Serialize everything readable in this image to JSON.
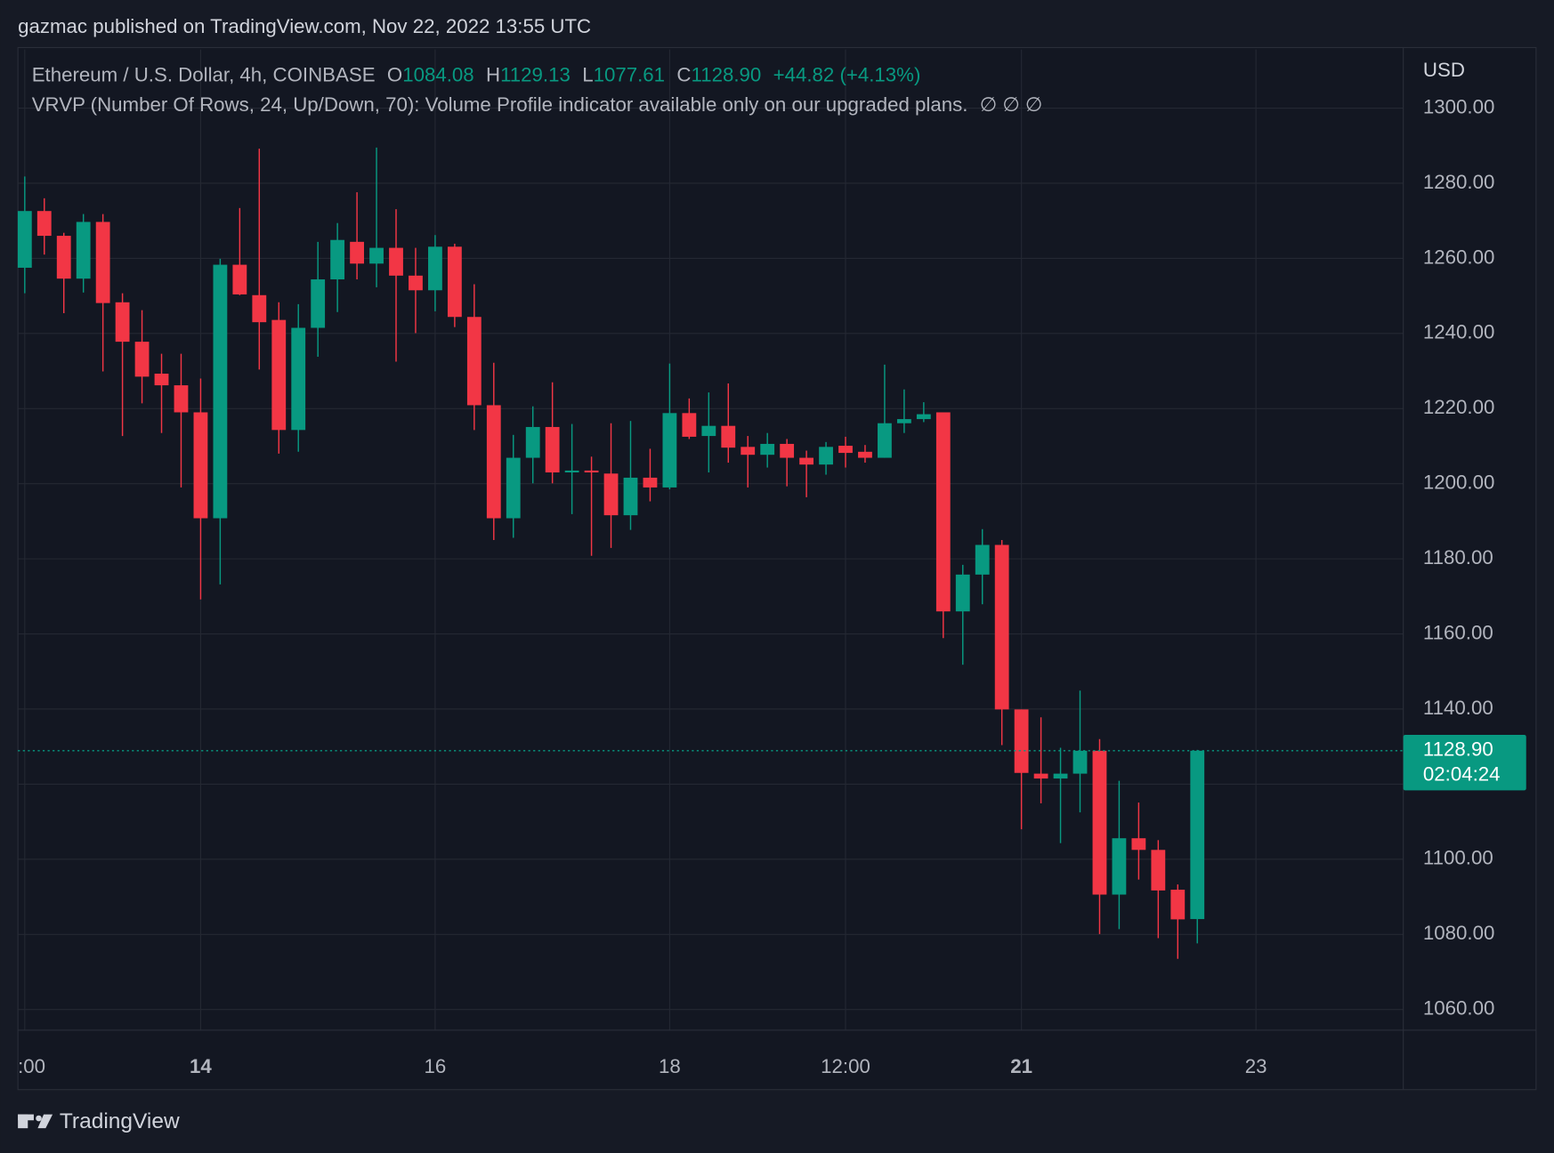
{
  "header": {
    "published": "gazmac published on TradingView.com, Nov 22, 2022 13:55 UTC",
    "symbol": "Ethereum / U.S. Dollar, 4h, COINBASE",
    "o_key": "O",
    "o_val": "1084.08",
    "h_key": "H",
    "h_val": "1129.13",
    "l_key": "L",
    "l_val": "1077.61",
    "c_key": "C",
    "c_val": "1128.90",
    "change": "+44.82 (+4.13%)",
    "indicator": "VRVP (Number Of Rows, 24, Up/Down, 70): Volume Profile indicator available only on our upgraded plans.",
    "indicator_values": "∅  ∅  ∅"
  },
  "chart_data": {
    "type": "candlestick",
    "currency": "USD",
    "up_color": "#089981",
    "down_color": "#f23645",
    "open": [
      1257.5,
      1272.6,
      1266.0,
      1254.6,
      1269.7,
      1248.3,
      1237.8,
      1229.3,
      1226.2,
      1219.0,
      1190.8,
      1258.3,
      1250.2,
      1243.6,
      1214.3,
      1241.5,
      1254.4,
      1264.4,
      1258.6,
      1262.8,
      1255.4,
      1251.5,
      1263.1,
      1244.4,
      1220.9,
      1190.8,
      1206.9,
      1215.1,
      1203.0,
      1203.5,
      1202.7,
      1191.6,
      1201.6,
      1199.0,
      1218.8,
      1212.7,
      1215.4,
      1209.8,
      1207.7,
      1210.6,
      1206.9,
      1205.1,
      1210.1,
      1208.5,
      1206.9,
      1216.1,
      1217.2,
      1219.0,
      1166.0,
      1175.8,
      1183.7,
      1139.9,
      1122.8,
      1121.5,
      1122.8,
      1128.9,
      1090.6,
      1105.6,
      1102.5,
      1091.9,
      1084.08
    ],
    "high": [
      1281.8,
      1276.0,
      1266.8,
      1271.8,
      1271.8,
      1250.7,
      1246.2,
      1234.6,
      1234.6,
      1228.0,
      1259.9,
      1273.4,
      1289.2,
      1248.3,
      1247.8,
      1264.4,
      1269.4,
      1277.6,
      1289.5,
      1273.1,
      1262.8,
      1266.2,
      1263.9,
      1253.1,
      1232.2,
      1213.0,
      1220.6,
      1227.0,
      1215.9,
      1207.2,
      1216.1,
      1216.7,
      1209.3,
      1232.0,
      1222.7,
      1224.3,
      1226.7,
      1212.7,
      1213.5,
      1211.9,
      1208.8,
      1211.1,
      1212.5,
      1210.3,
      1231.7,
      1225.1,
      1221.7,
      1219.0,
      1178.4,
      1187.9,
      1185.0,
      1139.9,
      1137.8,
      1129.7,
      1144.9,
      1132.0,
      1120.9,
      1115.1,
      1105.1,
      1093.3,
      1129.13
    ],
    "low": [
      1250.7,
      1261.0,
      1245.4,
      1250.9,
      1229.9,
      1212.7,
      1221.4,
      1213.5,
      1199.0,
      1169.2,
      1173.2,
      1250.2,
      1230.4,
      1208.0,
      1208.5,
      1233.8,
      1245.7,
      1254.4,
      1252.3,
      1232.5,
      1240.1,
      1245.9,
      1241.7,
      1214.3,
      1185.0,
      1185.6,
      1200.1,
      1200.1,
      1191.9,
      1180.8,
      1182.9,
      1187.7,
      1195.3,
      1198.5,
      1211.9,
      1203.0,
      1205.6,
      1199.0,
      1204.3,
      1199.3,
      1196.4,
      1202.4,
      1204.3,
      1205.6,
      1206.9,
      1213.5,
      1216.4,
      1158.9,
      1151.8,
      1167.9,
      1130.4,
      1108.0,
      1114.9,
      1104.3,
      1112.5,
      1080.1,
      1081.4,
      1094.6,
      1079.0,
      1073.5,
      1077.61
    ],
    "close": [
      1272.6,
      1266.0,
      1254.6,
      1269.7,
      1248.1,
      1237.8,
      1228.5,
      1226.2,
      1219.0,
      1190.8,
      1258.3,
      1250.4,
      1243.0,
      1214.3,
      1241.5,
      1254.4,
      1264.9,
      1258.6,
      1262.8,
      1255.4,
      1251.5,
      1263.1,
      1244.4,
      1220.9,
      1190.8,
      1206.9,
      1215.1,
      1203.0,
      1203.5,
      1203.0,
      1191.6,
      1201.6,
      1199.0,
      1218.8,
      1212.5,
      1215.4,
      1209.6,
      1207.7,
      1210.6,
      1206.9,
      1205.1,
      1209.8,
      1208.2,
      1206.9,
      1216.1,
      1217.2,
      1218.5,
      1166.0,
      1175.8,
      1183.7,
      1139.9,
      1123.0,
      1121.5,
      1122.8,
      1128.9,
      1090.6,
      1105.6,
      1102.5,
      1091.7,
      1084.0,
      1128.9
    ],
    "xlim": [
      -0.35,
      70.54
    ],
    "xticks": [
      {
        "value": 0,
        "label": ":00"
      },
      {
        "value": 9,
        "label": "14",
        "bold": true
      },
      {
        "value": 21,
        "label": "16"
      },
      {
        "value": 33,
        "label": "18"
      },
      {
        "value": 42,
        "label": "12:00"
      },
      {
        "value": 51,
        "label": "21",
        "bold": true
      },
      {
        "value": 63,
        "label": "23"
      }
    ],
    "ylim": [
      1054.5,
      1315.6
    ],
    "yticks": [
      {
        "value": 1060,
        "label": "1060.00"
      },
      {
        "value": 1080,
        "label": "1080.00"
      },
      {
        "value": 1100,
        "label": "1100.00"
      },
      {
        "value": 1120,
        "label": "1120.00"
      },
      {
        "value": 1140,
        "label": "1140.00"
      },
      {
        "value": 1160,
        "label": "1160.00"
      },
      {
        "value": 1180,
        "label": "1180.00"
      },
      {
        "value": 1200,
        "label": "1200.00"
      },
      {
        "value": 1220,
        "label": "1220.00"
      },
      {
        "value": 1240,
        "label": "1240.00"
      },
      {
        "value": 1260,
        "label": "1260.00"
      },
      {
        "value": 1280,
        "label": "1280.00"
      },
      {
        "value": 1300,
        "label": "1300.00"
      }
    ],
    "grid": true,
    "last_price": {
      "value": 1128.9,
      "label": "1128.90",
      "countdown": "02:04:24"
    }
  },
  "footer": {
    "brand": "TradingView"
  }
}
